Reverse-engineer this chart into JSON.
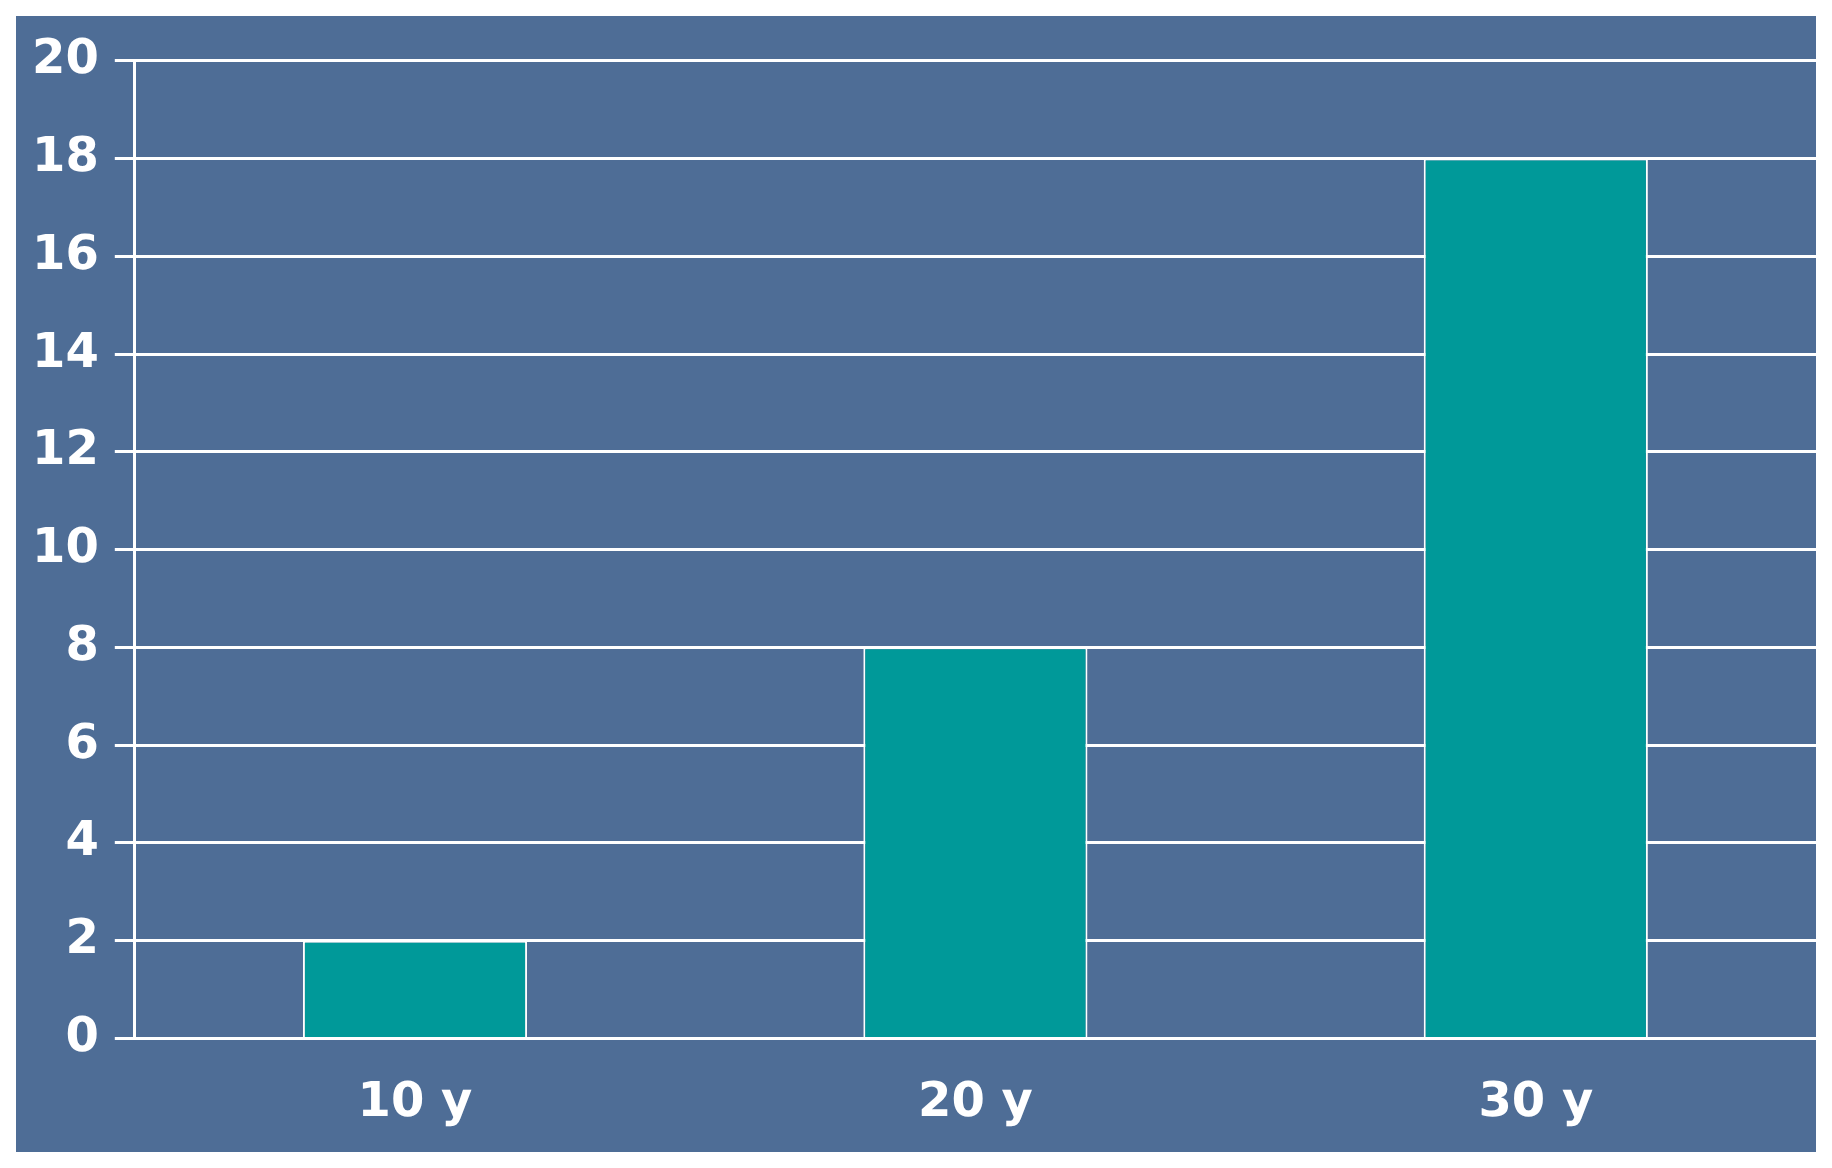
{
  "chart_data": {
    "type": "bar",
    "categories": [
      "10 y",
      "20 y",
      "30 y"
    ],
    "values": [
      2,
      8,
      18
    ],
    "color": "#009999",
    "ylim": [
      0,
      20
    ],
    "yticks": [
      0,
      2,
      4,
      6,
      8,
      10,
      12,
      14,
      16,
      18,
      20
    ],
    "grid": "y",
    "legend": false
  }
}
